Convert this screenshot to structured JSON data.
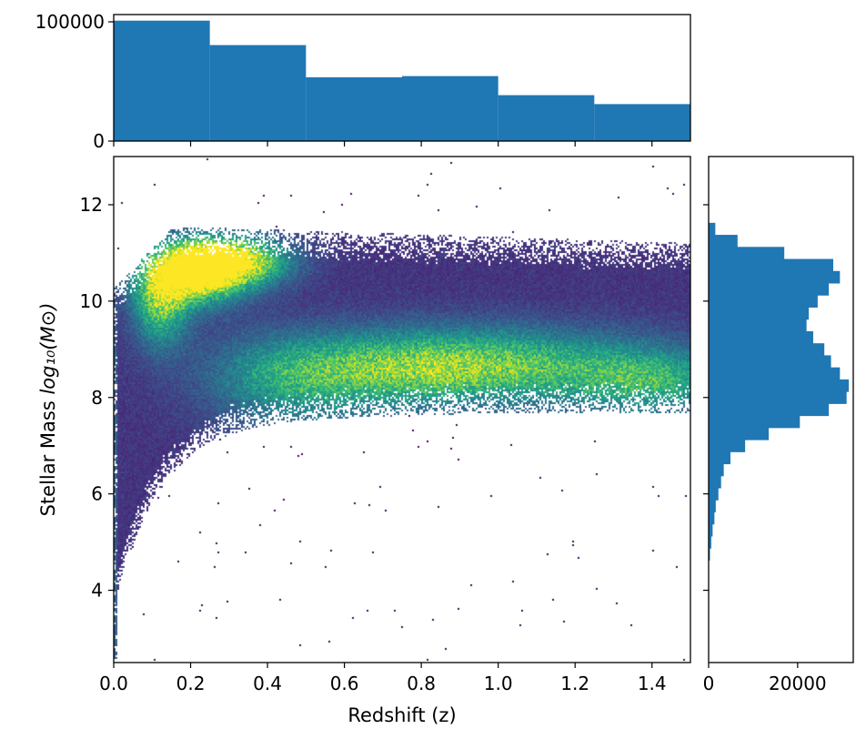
{
  "chart_data": [
    {
      "id": "top_histogram",
      "type": "bar",
      "xlim": [
        0.0,
        1.5
      ],
      "ylim": [
        0,
        100000
      ],
      "bin_edges": [
        0.0,
        0.25,
        0.5,
        0.75,
        1.0,
        1.25,
        1.5
      ],
      "values": [
        101000,
        80500,
        53500,
        54500,
        38500,
        31000
      ],
      "y_ticks": [
        0,
        100000
      ],
      "y_tick_labels": [
        "0",
        "100000"
      ],
      "color": "#1f77b4",
      "grid": false
    },
    {
      "id": "main_2d_histogram",
      "type": "heatmap",
      "xlabel": "Redshift (z)",
      "ylabel_text": "Stellar Mass ",
      "ylabel_math": "log₁₀(M⊙)",
      "xlim": [
        0.0,
        1.5
      ],
      "ylim": [
        2.5,
        13.0
      ],
      "x_ticks": [
        0.0,
        0.2,
        0.4,
        0.6,
        0.8,
        1.0,
        1.2,
        1.4
      ],
      "x_tick_labels": [
        "0.0",
        "0.2",
        "0.4",
        "0.6",
        "0.8",
        "1.0",
        "1.2",
        "1.4"
      ],
      "y_ticks": [
        4,
        6,
        8,
        10,
        12
      ],
      "y_tick_labels": [
        "4",
        "6",
        "8",
        "10",
        "12"
      ],
      "colormap": "viridis",
      "density_components": [
        {
          "z_center": 0.2,
          "z_width": 0.09,
          "mass_center": 10.6,
          "mass_width": 0.45,
          "weight": 1.0
        },
        {
          "z_center": 0.31,
          "z_width": 0.1,
          "mass_center": 10.85,
          "mass_width": 0.35,
          "weight": 0.85
        },
        {
          "z_center": 0.12,
          "z_width": 0.05,
          "mass_center": 9.9,
          "mass_width": 0.6,
          "weight": 0.55
        },
        {
          "z_center": 0.75,
          "z_width": 0.25,
          "mass_center": 8.6,
          "mass_width": 0.55,
          "weight": 0.45
        },
        {
          "z_center": 1.05,
          "z_width": 0.3,
          "mass_center": 8.7,
          "mass_width": 0.55,
          "weight": 0.42
        },
        {
          "z_center": 1.4,
          "z_width": 0.15,
          "mass_center": 8.3,
          "mass_width": 0.45,
          "weight": 0.4
        },
        {
          "z_center": 0.45,
          "z_width": 0.15,
          "mass_center": 8.3,
          "mass_width": 0.7,
          "weight": 0.3
        }
      ],
      "grid": false
    },
    {
      "id": "right_histogram",
      "type": "bar",
      "orientation": "horizontal",
      "xlim": [
        0,
        32500
      ],
      "ylim": [
        2.5,
        13.0
      ],
      "bin_centers": [
        4.75,
        5.0,
        5.25,
        5.5,
        5.75,
        6.0,
        6.25,
        6.5,
        6.75,
        7.0,
        7.25,
        7.5,
        7.75,
        8.0,
        8.25,
        8.5,
        8.75,
        9.0,
        9.25,
        9.5,
        9.75,
        10.0,
        10.25,
        10.5,
        10.75,
        11.0,
        11.25,
        11.5
      ],
      "bin_width": 0.25,
      "values": [
        300,
        600,
        900,
        1300,
        1600,
        2200,
        2800,
        3400,
        4900,
        8200,
        13500,
        20500,
        27000,
        31000,
        31500,
        29500,
        27500,
        26000,
        23500,
        22000,
        22500,
        24500,
        27000,
        29500,
        28000,
        17000,
        6500,
        1500
      ],
      "x_ticks": [
        0,
        20000
      ],
      "x_tick_labels": [
        "0",
        "20000"
      ],
      "color": "#1f77b4",
      "grid": false
    }
  ]
}
